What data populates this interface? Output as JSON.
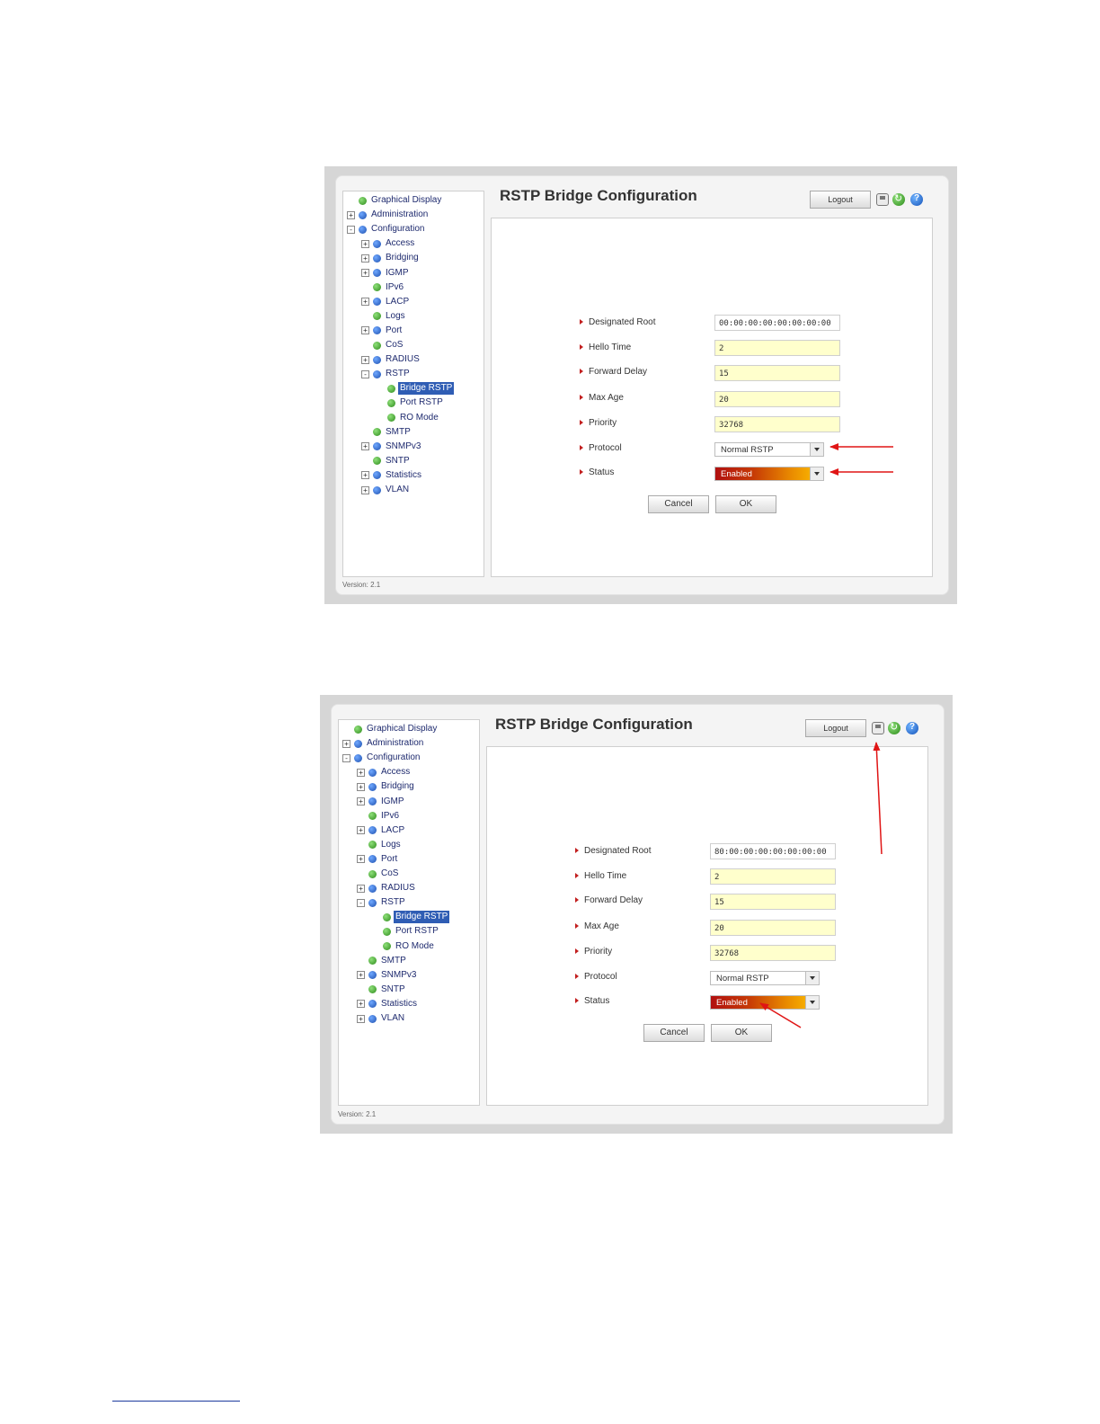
{
  "tree": {
    "items": [
      {
        "label": "Graphical Display",
        "toggle": "",
        "level": 0,
        "dot": "green"
      },
      {
        "label": "Administration",
        "toggle": "+",
        "level": 0,
        "dot": "blue"
      },
      {
        "label": "Configuration",
        "toggle": "-",
        "level": 0,
        "dot": "blue"
      },
      {
        "label": "Access",
        "toggle": "+",
        "level": 1,
        "dot": "blue"
      },
      {
        "label": "Bridging",
        "toggle": "+",
        "level": 1,
        "dot": "blue"
      },
      {
        "label": "IGMP",
        "toggle": "+",
        "level": 1,
        "dot": "blue"
      },
      {
        "label": "IPv6",
        "toggle": "",
        "level": 1,
        "dot": "green"
      },
      {
        "label": "LACP",
        "toggle": "+",
        "level": 1,
        "dot": "blue"
      },
      {
        "label": "Logs",
        "toggle": "",
        "level": 1,
        "dot": "green"
      },
      {
        "label": "Port",
        "toggle": "+",
        "level": 1,
        "dot": "blue"
      },
      {
        "label": "CoS",
        "toggle": "",
        "level": 1,
        "dot": "green"
      },
      {
        "label": "RADIUS",
        "toggle": "+",
        "level": 1,
        "dot": "blue"
      },
      {
        "label": "RSTP",
        "toggle": "-",
        "level": 1,
        "dot": "blue"
      },
      {
        "label": "Bridge RSTP",
        "toggle": "",
        "level": 2,
        "dot": "green",
        "selected": true
      },
      {
        "label": "Port RSTP",
        "toggle": "",
        "level": 2,
        "dot": "green"
      },
      {
        "label": "RO Mode",
        "toggle": "",
        "level": 2,
        "dot": "green"
      },
      {
        "label": "SMTP",
        "toggle": "",
        "level": 1,
        "dot": "green"
      },
      {
        "label": "SNMPv3",
        "toggle": "+",
        "level": 1,
        "dot": "blue"
      },
      {
        "label": "SNTP",
        "toggle": "",
        "level": 1,
        "dot": "green"
      },
      {
        "label": "Statistics",
        "toggle": "+",
        "level": 1,
        "dot": "blue"
      },
      {
        "label": "VLAN",
        "toggle": "+",
        "level": 1,
        "dot": "blue"
      }
    ],
    "version": "Version: 2.1"
  },
  "header": {
    "title": "RSTP Bridge Configuration",
    "logout_label": "Logout",
    "icons": [
      "save-icon",
      "refresh-icon",
      "help-icon"
    ]
  },
  "form": {
    "labels": [
      "Designated Root",
      "Hello Time",
      "Forward Delay",
      "Max Age",
      "Priority",
      "Protocol",
      "Status"
    ],
    "hello_time": "2",
    "forward_delay": "15",
    "max_age": "20",
    "protocol": "Normal RSTP",
    "status": "Enabled",
    "cancel_label": "Cancel",
    "ok_label": "OK"
  },
  "screens": [
    {
      "designated_root": "00:00:00:00:00:00:00:00",
      "priority": "32768"
    },
    {
      "designated_root": "80:00:00:00:00:00:00:00",
      "priority": "32768"
    }
  ],
  "colors": {
    "annotation_arrow": "#e01515",
    "selected_item": "#2f5db4",
    "editable_field": "#ffffcc"
  }
}
